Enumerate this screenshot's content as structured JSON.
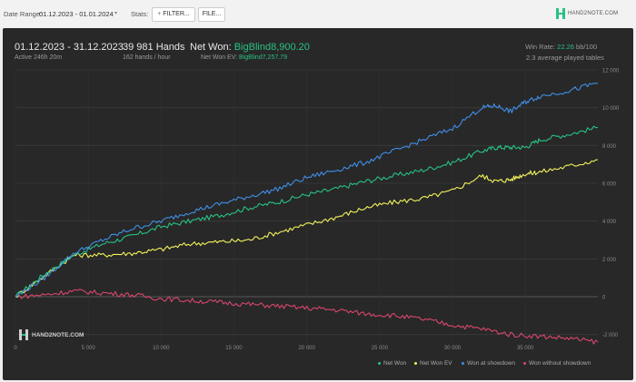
{
  "toolbar": {
    "date_range_label": "Date Range:",
    "date_range_value": "01.12.2023 - 01.01.2024",
    "stats_label": "Stats:",
    "filter_button": "FILTER...",
    "file_button": "FILE...",
    "brand": "HAND2NOTE.COM"
  },
  "summary": {
    "period": "01.12.2023 - 31.12.2023",
    "active": "Active 246h 20m",
    "hands": "39 981 Hands",
    "hands_per_hour": "162 hands / hour",
    "net_won_label": "Net Won:",
    "net_won_value": "BigBlind8,900.20",
    "net_won_ev_label": "Net Won EV:",
    "net_won_ev_value": "BigBlind7,257.79",
    "win_rate_label": "Win Rate:",
    "win_rate_value": "22.26",
    "win_rate_unit": "bb/100",
    "avg_tables": "2.3 average played tables"
  },
  "watermark": "HAND2NOTE.COM",
  "colors": {
    "net_won": "#27c283",
    "net_won_ev": "#f2f25b",
    "won_at_showdown": "#3f8fe8",
    "won_without_showdown": "#d9466e"
  },
  "chart_data": {
    "type": "line",
    "x_ticks": [
      "0",
      "5 000",
      "10 000",
      "15 000",
      "20 000",
      "25 000",
      "30 000",
      "35 000"
    ],
    "y_ticks": [
      "12 000",
      "10 000",
      "8 000",
      "6 000",
      "4 000",
      "2 000",
      "0",
      "-2 000"
    ],
    "xlim": [
      0,
      39981
    ],
    "ylim": [
      -2400,
      12000
    ],
    "grid": true,
    "legend_position": "bottom-right",
    "series": [
      {
        "name": "Net Won",
        "color": "#27c283",
        "x": [
          0,
          2000,
          4000,
          6000,
          8000,
          10000,
          12000,
          14000,
          16000,
          18000,
          20000,
          22000,
          24000,
          26000,
          28000,
          30000,
          32000,
          33000,
          34000,
          35000,
          36000,
          38000,
          39981
        ],
        "y": [
          0,
          1200,
          2200,
          2800,
          3200,
          3700,
          4000,
          4300,
          4700,
          5000,
          5400,
          5700,
          6100,
          6400,
          6700,
          7100,
          7700,
          7900,
          7900,
          7900,
          8300,
          8600,
          8950
        ]
      },
      {
        "name": "Net Won  EV",
        "color": "#f2f25b",
        "x": [
          0,
          2000,
          4000,
          6000,
          8000,
          10000,
          12000,
          14000,
          16000,
          18000,
          20000,
          22000,
          24000,
          26000,
          28000,
          30000,
          32000,
          33000,
          34000,
          35000,
          36000,
          38000,
          39981
        ],
        "y": [
          0,
          1100,
          2200,
          2200,
          2300,
          2500,
          2800,
          2900,
          3000,
          3400,
          3800,
          4200,
          4700,
          5000,
          5200,
          5600,
          6400,
          6100,
          6200,
          6500,
          6600,
          6900,
          7250
        ]
      },
      {
        "name": "Won at showdown",
        "color": "#3f8fe8",
        "x": [
          0,
          2000,
          4000,
          6000,
          8000,
          10000,
          12000,
          14000,
          16000,
          18000,
          20000,
          22000,
          24000,
          26000,
          28000,
          30000,
          32000,
          33000,
          34000,
          35000,
          36000,
          38000,
          39981
        ],
        "y": [
          0,
          1000,
          2300,
          3000,
          3600,
          4000,
          4500,
          4900,
          5300,
          5700,
          6300,
          6700,
          7100,
          7700,
          8300,
          8900,
          10000,
          10100,
          9800,
          10300,
          10600,
          10900,
          11300
        ]
      },
      {
        "name": "Won without showdown",
        "color": "#d9466e",
        "x": [
          0,
          2000,
          4000,
          6000,
          8000,
          10000,
          12000,
          14000,
          16000,
          18000,
          20000,
          22000,
          24000,
          26000,
          28000,
          30000,
          32000,
          34000,
          36000,
          38000,
          39981
        ],
        "y": [
          0,
          100,
          300,
          200,
          100,
          -100,
          -200,
          -300,
          -400,
          -500,
          -600,
          -700,
          -900,
          -1000,
          -1200,
          -1500,
          -1700,
          -2000,
          -2100,
          -2200,
          -2400
        ]
      }
    ]
  }
}
